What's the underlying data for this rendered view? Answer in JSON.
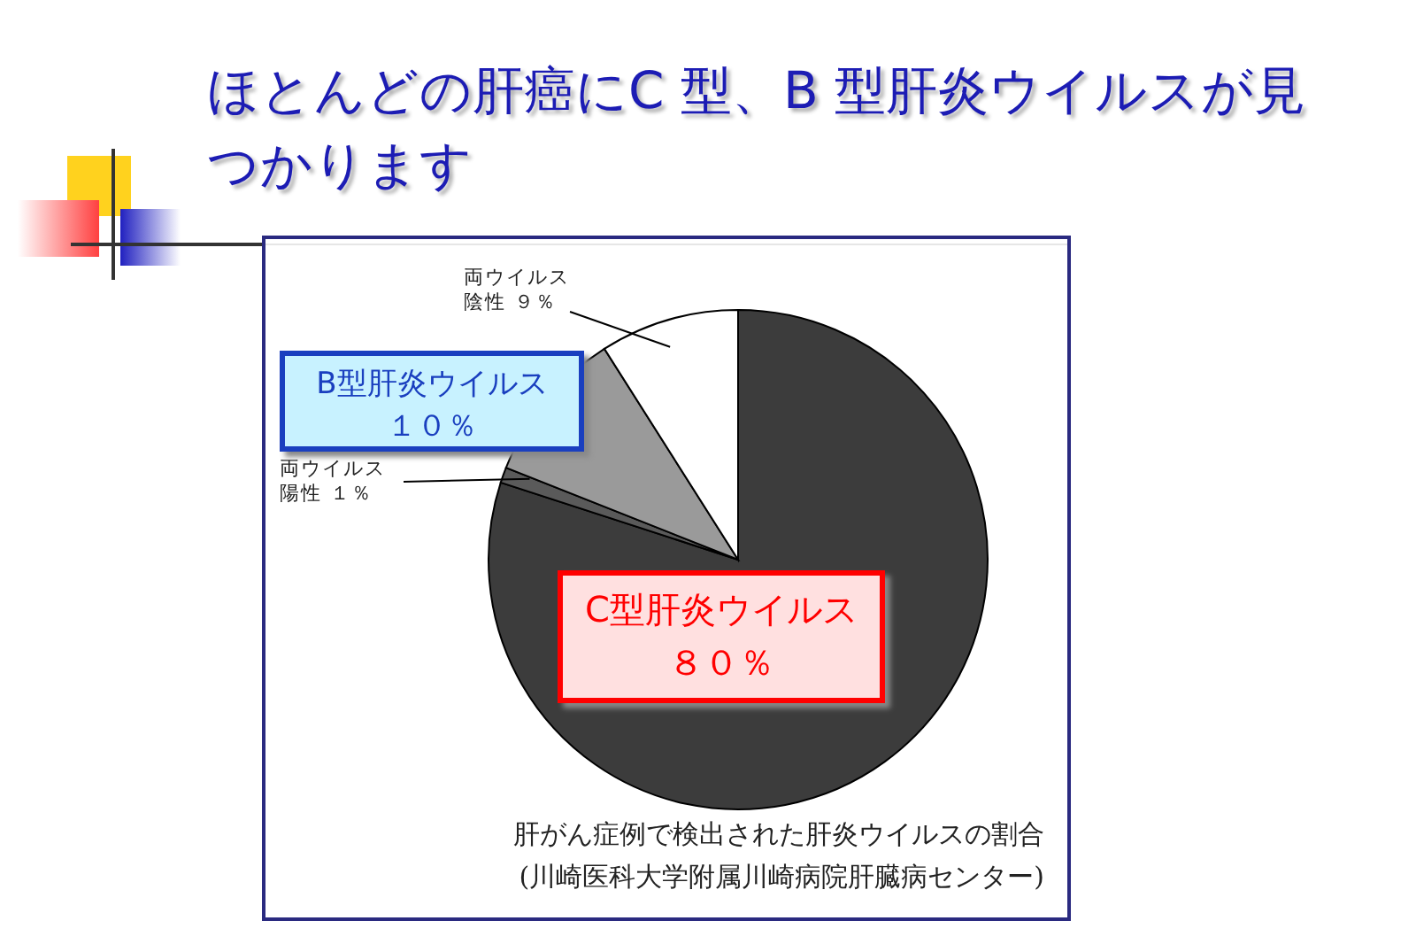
{
  "chart_data": {
    "type": "pie",
    "title": "ほとんどの肝癌にC 型、B 型肝炎ウイルスが見つかります",
    "categories": [
      "C型肝炎ウイルス",
      "両ウイルス陽性",
      "B型肝炎ウイルス",
      "両ウイルス陰性"
    ],
    "values": [
      80,
      1,
      10,
      9
    ],
    "colors": [
      "#3c3c3c",
      "#5a5a5a",
      "#9a9a9a",
      "#ffffff"
    ],
    "value_labels": [
      "８０％",
      "１％",
      "１０％",
      "９％"
    ],
    "annotations": [
      "肝がん症例で検出された肝炎ウイルスの割合",
      "(川崎医科大学附属川崎病院肝臓病センター)"
    ]
  }
}
